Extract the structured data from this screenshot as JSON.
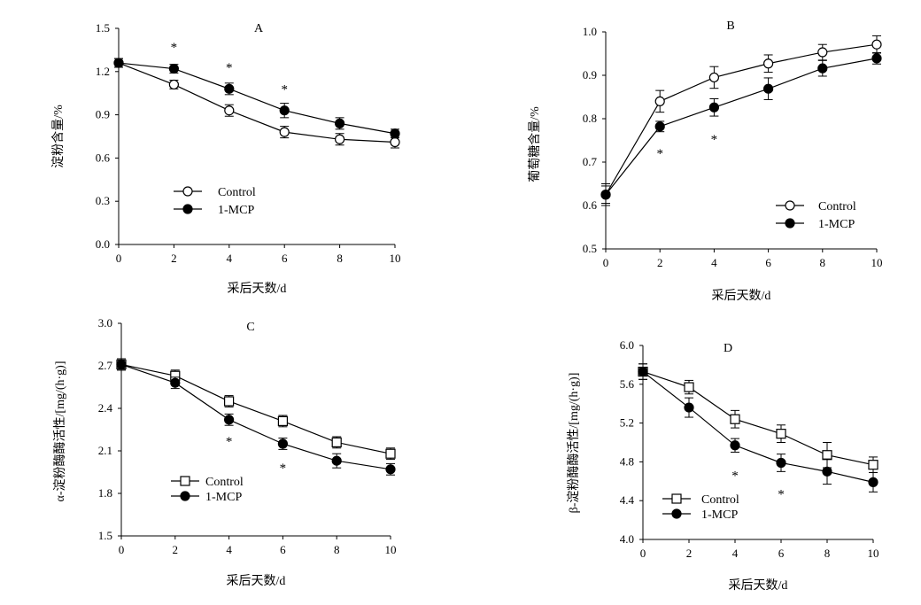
{
  "chart_data": [
    {
      "panel": "A",
      "type": "line",
      "xlabel": "采后天数/d",
      "ylabel": "淀粉含量/%",
      "x": [
        0,
        2,
        4,
        6,
        8,
        10
      ],
      "xlim": [
        0,
        10
      ],
      "ylim": [
        0,
        1.5
      ],
      "yticks": [
        "0.0",
        "0.3",
        "0.6",
        "0.9",
        "1.2",
        "1.5"
      ],
      "xticks": [
        "0",
        "2",
        "4",
        "6",
        "8",
        "10"
      ],
      "grid": false,
      "legend_position": "lower-left",
      "series": [
        {
          "name": "Control",
          "marker": "open-circle",
          "values": [
            1.26,
            1.11,
            0.93,
            0.78,
            0.73,
            0.71
          ],
          "errors": [
            0.03,
            0.03,
            0.04,
            0.04,
            0.04,
            0.04
          ]
        },
        {
          "name": "1-MCP",
          "marker": "filled-circle",
          "values": [
            1.26,
            1.22,
            1.08,
            0.93,
            0.84,
            0.77
          ],
          "errors": [
            0.03,
            0.03,
            0.04,
            0.05,
            0.04,
            0.03
          ]
        }
      ],
      "significance": [
        {
          "x": 2,
          "y": 1.37,
          "text": "*"
        },
        {
          "x": 4,
          "y": 1.23,
          "text": "*"
        },
        {
          "x": 6,
          "y": 1.08,
          "text": "*"
        }
      ]
    },
    {
      "panel": "B",
      "type": "line",
      "xlabel": "采后天数/d",
      "ylabel": "葡萄糖含量/%",
      "x": [
        0,
        2,
        4,
        6,
        8,
        10
      ],
      "xlim": [
        0,
        10
      ],
      "ylim": [
        0.5,
        1.0
      ],
      "yticks": [
        "0.5",
        "0.6",
        "0.7",
        "0.8",
        "0.9",
        "1.0"
      ],
      "xticks": [
        "0",
        "2",
        "4",
        "6",
        "8",
        "10"
      ],
      "grid": false,
      "legend_position": "lower-right",
      "series": [
        {
          "name": "Control",
          "marker": "open-circle",
          "values": [
            0.625,
            0.84,
            0.895,
            0.927,
            0.953,
            0.971
          ],
          "errors": [
            0.025,
            0.025,
            0.025,
            0.02,
            0.018,
            0.02
          ]
        },
        {
          "name": "1-MCP",
          "marker": "filled-circle",
          "values": [
            0.625,
            0.782,
            0.826,
            0.869,
            0.916,
            0.939
          ],
          "errors": [
            0.02,
            0.012,
            0.02,
            0.025,
            0.018,
            0.013
          ]
        }
      ],
      "significance": [
        {
          "x": 2,
          "y": 0.72,
          "text": "*"
        },
        {
          "x": 4,
          "y": 0.753,
          "text": "*"
        }
      ]
    },
    {
      "panel": "C",
      "type": "line",
      "xlabel": "采后天数/d",
      "ylabel": "α-淀粉酶酶活性/[mg/(h·g)]",
      "x": [
        0,
        2,
        4,
        6,
        8,
        10
      ],
      "xlim": [
        0,
        10
      ],
      "ylim": [
        1.5,
        3.0
      ],
      "yticks": [
        "1.5",
        "1.8",
        "2.1",
        "2.4",
        "2.7",
        "3.0"
      ],
      "xticks": [
        "0",
        "2",
        "4",
        "6",
        "8",
        "10"
      ],
      "grid": false,
      "legend_position": "lower-left",
      "series": [
        {
          "name": "Control",
          "marker": "open-square",
          "values": [
            2.71,
            2.63,
            2.45,
            2.31,
            2.16,
            2.08
          ],
          "errors": [
            0.04,
            0.04,
            0.04,
            0.04,
            0.04,
            0.04
          ]
        },
        {
          "name": "1-MCP",
          "marker": "filled-circle",
          "values": [
            2.71,
            2.58,
            2.32,
            2.15,
            2.03,
            1.97
          ],
          "errors": [
            0.04,
            0.04,
            0.04,
            0.04,
            0.05,
            0.04
          ]
        }
      ],
      "significance": [
        {
          "x": 4,
          "y": 2.17,
          "text": "*"
        },
        {
          "x": 6,
          "y": 1.98,
          "text": "*"
        }
      ]
    },
    {
      "panel": "D",
      "type": "line",
      "xlabel": "采后天数/d",
      "ylabel": "β-淀粉酶酶活性/[mg/(h·g)]",
      "x": [
        0,
        2,
        4,
        6,
        8,
        10
      ],
      "xlim": [
        0,
        10
      ],
      "ylim": [
        4.0,
        6.0
      ],
      "yticks": [
        "4.0",
        "4.4",
        "4.8",
        "5.2",
        "5.6",
        "6.0"
      ],
      "xticks": [
        "0",
        "2",
        "4",
        "6",
        "8",
        "10"
      ],
      "grid": false,
      "legend_position": "lower-left",
      "series": [
        {
          "name": "Control",
          "marker": "open-square",
          "values": [
            5.73,
            5.57,
            5.24,
            5.09,
            4.87,
            4.77
          ],
          "errors": [
            0.08,
            0.07,
            0.09,
            0.09,
            0.13,
            0.08
          ]
        },
        {
          "name": "1-MCP",
          "marker": "filled-circle",
          "values": [
            5.73,
            5.36,
            4.97,
            4.79,
            4.7,
            4.59
          ],
          "errors": [
            0.08,
            0.1,
            0.07,
            0.09,
            0.13,
            0.1
          ]
        }
      ],
      "significance": [
        {
          "x": 4,
          "y": 4.66,
          "text": "*"
        },
        {
          "x": 6,
          "y": 4.47,
          "text": "*"
        }
      ]
    }
  ]
}
